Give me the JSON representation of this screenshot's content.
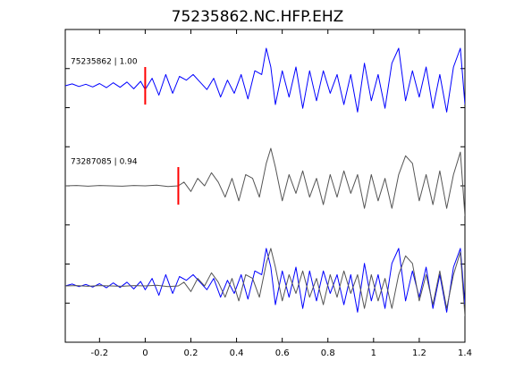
{
  "chart_data": {
    "type": "line",
    "title": "75235862.NC.HFP.EHZ",
    "xlabel": "",
    "ylabel": "",
    "xlim": [
      -0.35,
      1.4
    ],
    "xticks": [
      -0.2,
      0,
      0.2,
      0.4,
      0.6,
      0.8,
      1,
      1.2,
      1.4
    ],
    "xtick_labels": [
      "-0.2",
      "0",
      "0.2",
      "0.4",
      "0.6",
      "0.8",
      "1",
      "1.2",
      "1.4"
    ],
    "ylim": [
      0,
      1
    ],
    "y_tick_count": 8,
    "grid": false,
    "colors": {
      "blue": "#0000ff",
      "gray": "#555555",
      "pick": "#ff0000",
      "frame": "#000000"
    },
    "traces": [
      {
        "label": "75235862 | 1.00",
        "color": "#0000ff",
        "pick_time": 0.0,
        "center": 0.82,
        "t": [
          -0.35,
          -0.32,
          -0.29,
          -0.26,
          -0.23,
          -0.2,
          -0.17,
          -0.14,
          -0.11,
          -0.08,
          -0.05,
          -0.02,
          0.0,
          0.03,
          0.06,
          0.09,
          0.12,
          0.15,
          0.18,
          0.21,
          0.24,
          0.27,
          0.3,
          0.33,
          0.36,
          0.39,
          0.42,
          0.45,
          0.48,
          0.51,
          0.53,
          0.55,
          0.57,
          0.6,
          0.63,
          0.66,
          0.69,
          0.72,
          0.75,
          0.78,
          0.81,
          0.84,
          0.87,
          0.9,
          0.93,
          0.96,
          0.99,
          1.02,
          1.05,
          1.08,
          1.11,
          1.14,
          1.17,
          1.2,
          1.23,
          1.26,
          1.29,
          1.32,
          1.35,
          1.38,
          1.4
        ],
        "y": [
          0,
          0.05,
          -0.02,
          0.04,
          -0.03,
          0.06,
          -0.05,
          0.08,
          -0.04,
          0.1,
          -0.08,
          0.12,
          -0.1,
          0.2,
          -0.25,
          0.3,
          -0.2,
          0.25,
          0.15,
          0.3,
          0.1,
          -0.1,
          0.2,
          -0.3,
          0.15,
          -0.2,
          0.3,
          -0.35,
          0.4,
          0.3,
          1.0,
          0.5,
          -0.5,
          0.4,
          -0.3,
          0.5,
          -0.6,
          0.4,
          -0.4,
          0.4,
          -0.2,
          0.3,
          -0.5,
          0.3,
          -0.7,
          0.6,
          -0.4,
          0.3,
          -0.6,
          0.6,
          1.0,
          -0.4,
          0.4,
          -0.3,
          0.5,
          -0.6,
          0.3,
          -0.7,
          0.5,
          1.0,
          -0.5
        ]
      },
      {
        "label": "73287085 | 0.94",
        "color": "#555555",
        "pick_time": 0.145,
        "center": 0.5,
        "t": [
          -0.35,
          -0.3,
          -0.25,
          -0.2,
          -0.15,
          -0.1,
          -0.05,
          0.0,
          0.05,
          0.1,
          0.145,
          0.17,
          0.2,
          0.23,
          0.26,
          0.29,
          0.32,
          0.35,
          0.38,
          0.41,
          0.44,
          0.47,
          0.5,
          0.53,
          0.55,
          0.57,
          0.6,
          0.63,
          0.66,
          0.69,
          0.72,
          0.75,
          0.78,
          0.81,
          0.84,
          0.87,
          0.9,
          0.93,
          0.96,
          0.99,
          1.02,
          1.05,
          1.08,
          1.11,
          1.14,
          1.17,
          1.2,
          1.23,
          1.26,
          1.29,
          1.32,
          1.35,
          1.38,
          1.4
        ],
        "y": [
          0,
          0.01,
          -0.01,
          0.01,
          0.0,
          -0.01,
          0.01,
          0.0,
          0.02,
          -0.02,
          0.0,
          0.1,
          -0.15,
          0.2,
          0.0,
          0.35,
          0.1,
          -0.3,
          0.2,
          -0.4,
          0.3,
          0.2,
          -0.3,
          0.6,
          1.0,
          0.5,
          -0.4,
          0.3,
          -0.2,
          0.4,
          -0.3,
          0.2,
          -0.5,
          0.3,
          -0.3,
          0.4,
          -0.2,
          0.3,
          -0.6,
          0.3,
          -0.4,
          0.2,
          -0.6,
          0.3,
          0.8,
          0.6,
          -0.4,
          0.3,
          -0.5,
          0.4,
          -0.6,
          0.3,
          0.9,
          -0.8
        ]
      },
      {
        "label": "",
        "color": "#0000ff",
        "pick_time": null,
        "center": 0.18,
        "t": [
          -0.35,
          -0.32,
          -0.29,
          -0.26,
          -0.23,
          -0.2,
          -0.17,
          -0.14,
          -0.11,
          -0.08,
          -0.05,
          -0.02,
          0.0,
          0.03,
          0.06,
          0.09,
          0.12,
          0.15,
          0.18,
          0.21,
          0.24,
          0.27,
          0.3,
          0.33,
          0.36,
          0.39,
          0.42,
          0.45,
          0.48,
          0.51,
          0.53,
          0.55,
          0.57,
          0.6,
          0.63,
          0.66,
          0.69,
          0.72,
          0.75,
          0.78,
          0.81,
          0.84,
          0.87,
          0.9,
          0.93,
          0.96,
          0.99,
          1.02,
          1.05,
          1.08,
          1.11,
          1.14,
          1.17,
          1.2,
          1.23,
          1.26,
          1.29,
          1.32,
          1.35,
          1.38,
          1.4
        ],
        "y": [
          0,
          0.05,
          -0.02,
          0.04,
          -0.03,
          0.06,
          -0.05,
          0.08,
          -0.04,
          0.1,
          -0.08,
          0.12,
          -0.1,
          0.2,
          -0.25,
          0.3,
          -0.2,
          0.25,
          0.15,
          0.3,
          0.1,
          -0.1,
          0.2,
          -0.3,
          0.15,
          -0.2,
          0.3,
          -0.35,
          0.4,
          0.3,
          1.0,
          0.5,
          -0.5,
          0.4,
          -0.3,
          0.5,
          -0.6,
          0.4,
          -0.4,
          0.4,
          -0.2,
          0.3,
          -0.5,
          0.3,
          -0.7,
          0.6,
          -0.4,
          0.3,
          -0.6,
          0.6,
          1.0,
          -0.4,
          0.4,
          -0.3,
          0.5,
          -0.6,
          0.3,
          -0.7,
          0.5,
          1.0,
          -0.5
        ]
      },
      {
        "label": "",
        "color": "#555555",
        "pick_time": null,
        "center": 0.18,
        "t": [
          -0.35,
          -0.3,
          -0.25,
          -0.2,
          -0.15,
          -0.1,
          -0.05,
          0.0,
          0.05,
          0.1,
          0.145,
          0.17,
          0.2,
          0.23,
          0.26,
          0.29,
          0.32,
          0.35,
          0.38,
          0.41,
          0.44,
          0.47,
          0.5,
          0.53,
          0.55,
          0.57,
          0.6,
          0.63,
          0.66,
          0.69,
          0.72,
          0.75,
          0.78,
          0.81,
          0.84,
          0.87,
          0.9,
          0.93,
          0.96,
          0.99,
          1.02,
          1.05,
          1.08,
          1.11,
          1.14,
          1.17,
          1.2,
          1.23,
          1.26,
          1.29,
          1.32,
          1.35,
          1.38,
          1.4
        ],
        "y": [
          0,
          0.01,
          -0.01,
          0.01,
          0.0,
          -0.01,
          0.01,
          0.0,
          0.02,
          -0.02,
          0.0,
          0.1,
          -0.15,
          0.2,
          0.0,
          0.35,
          0.1,
          -0.3,
          0.2,
          -0.4,
          0.3,
          0.2,
          -0.3,
          0.6,
          1.0,
          0.5,
          -0.4,
          0.3,
          -0.2,
          0.4,
          -0.3,
          0.2,
          -0.5,
          0.3,
          -0.3,
          0.4,
          -0.2,
          0.3,
          -0.6,
          0.3,
          -0.4,
          0.2,
          -0.6,
          0.3,
          0.8,
          0.6,
          -0.4,
          0.3,
          -0.5,
          0.4,
          -0.6,
          0.3,
          0.9,
          -0.8
        ]
      }
    ]
  }
}
